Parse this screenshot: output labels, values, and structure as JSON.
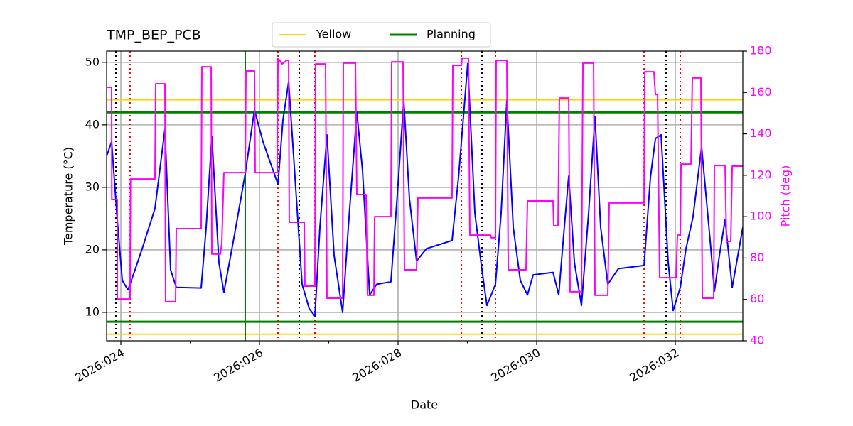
{
  "chart_data": {
    "type": "line",
    "title": "TMP_BEP_PCB",
    "xlabel": "Date",
    "ylabel": "Temperature (°C)",
    "y2label": "Pitch (deg)",
    "xlim": [
      23.795,
      32.974
    ],
    "xticks": [
      {
        "value": 24,
        "label": "2026:024"
      },
      {
        "value": 26,
        "label": "2026:026"
      },
      {
        "value": 28,
        "label": "2026:028"
      },
      {
        "value": 30,
        "label": "2026:030"
      },
      {
        "value": 32,
        "label": "2026:032"
      }
    ],
    "xminorticks": [
      25,
      27,
      29,
      31
    ],
    "ylim": [
      5.45,
      51.8
    ],
    "yticks": [
      10,
      20,
      30,
      40,
      50
    ],
    "y2lim": [
      40,
      180
    ],
    "y2ticks": [
      40,
      60,
      80,
      100,
      120,
      140,
      160,
      180
    ],
    "y2color": "#ff00ff",
    "grid": true,
    "legend": "upper center",
    "hlines": [
      {
        "name": "Yellow",
        "color": "#ffd700",
        "values": [
          44,
          6.5
        ]
      },
      {
        "name": "Planning",
        "color": "#008000",
        "values": [
          42,
          8.5
        ]
      }
    ],
    "vlines": [
      {
        "color": "#000000",
        "dashed": true,
        "values": [
          23.928,
          26.574,
          29.21,
          31.867
        ]
      },
      {
        "color": "#ff0000",
        "dashed": true,
        "values": [
          24.133,
          26.267,
          26.8,
          28.913,
          29.405,
          31.549,
          32.072
        ]
      },
      {
        "color": "#008000",
        "dashed": false,
        "values": [
          25.795
        ]
      }
    ],
    "series": [
      {
        "color": "#0000ff",
        "axis": "y",
        "x": [
          23.795,
          23.867,
          23.949,
          24.021,
          24.103,
          24.205,
          24.308,
          24.492,
          24.636,
          24.718,
          24.8,
          25.159,
          25.231,
          25.313,
          25.415,
          25.487,
          25.641,
          25.795,
          25.928,
          26.051,
          26.267,
          26.338,
          26.421,
          26.513,
          26.615,
          26.718,
          26.8,
          26.872,
          26.974,
          27.077,
          27.2,
          27.282,
          27.405,
          27.487,
          27.59,
          27.692,
          27.897,
          28,
          28.082,
          28.164,
          28.267,
          28.41,
          28.779,
          28.872,
          29.005,
          29.108,
          29.21,
          29.282,
          29.405,
          29.487,
          29.569,
          29.662,
          29.764,
          29.867,
          29.949,
          30.236,
          30.318,
          30.39,
          30.462,
          30.544,
          30.646,
          30.749,
          30.841,
          30.923,
          31.026,
          31.179,
          31.549,
          31.641,
          31.713,
          31.795,
          31.897,
          31.969,
          32.072,
          32.154,
          32.256,
          32.379,
          32.513,
          32.564,
          32.636,
          32.718,
          32.821,
          32.974
        ],
        "values": [
          35,
          37.3,
          24.8,
          15.1,
          13.6,
          16.8,
          20.2,
          26.6,
          39.3,
          16.8,
          14,
          13.9,
          23.6,
          38.2,
          18,
          13.2,
          22.5,
          32.2,
          42.4,
          37.3,
          30.5,
          40.7,
          46.9,
          31.6,
          14.5,
          10.6,
          9.4,
          23.6,
          38.4,
          19.1,
          10,
          23.6,
          42,
          32.7,
          12.8,
          14.5,
          14.9,
          30.5,
          43.9,
          28.2,
          18.2,
          20.2,
          21.5,
          31.6,
          49.8,
          25.9,
          16.8,
          11.1,
          14.5,
          25.9,
          43.9,
          23.6,
          15.1,
          12.8,
          16,
          16.4,
          12.8,
          22.5,
          31.8,
          18,
          11.1,
          25.9,
          41.3,
          23.6,
          14.5,
          17,
          17.5,
          31.6,
          37.8,
          38.4,
          18,
          10.3,
          14,
          20.2,
          25.3,
          36.5,
          20.2,
          13.4,
          19.1,
          24.8,
          14,
          23.6
        ]
      },
      {
        "color": "#ff00ff",
        "axis": "y2",
        "x": [
          23.795,
          23.867,
          23.87,
          23.949,
          23.95,
          24.133,
          24.14,
          24.492,
          24.503,
          24.636,
          24.646,
          24.79,
          24.8,
          25.159,
          25.169,
          25.303,
          25.313,
          25.436,
          25.456,
          25.487,
          25.795,
          25.805,
          25.928,
          25.938,
          26.256,
          26.267,
          26.328,
          26.39,
          26.421,
          26.43,
          26.646,
          26.656,
          26.8,
          26.81,
          26.954,
          26.974,
          27.2,
          27.21,
          27.385,
          27.405,
          27.538,
          27.559,
          27.651,
          27.662,
          27.897,
          27.908,
          28.072,
          28.092,
          28.267,
          28.287,
          28.779,
          28.79,
          28.913,
          28.923,
          29.015,
          29.036,
          29.333,
          29.344,
          29.405,
          29.415,
          29.569,
          29.59,
          29.846,
          29.867,
          30.236,
          30.246,
          30.308,
          30.328,
          30.462,
          30.482,
          30.646,
          30.667,
          30.821,
          30.841,
          31.026,
          31.046,
          31.549,
          31.559,
          31.692,
          31.713,
          31.744,
          31.774,
          32.01,
          32.031,
          32.072,
          32.082,
          32.226,
          32.246,
          32.369,
          32.39,
          32.554,
          32.564,
          32.718,
          32.738,
          32.8,
          32.821,
          32.974
        ],
        "values": [
          162.5,
          162.5,
          108.3,
          108.3,
          60.2,
          60.2,
          118.2,
          118.2,
          164.2,
          164.2,
          58.9,
          58.9,
          94.2,
          94.2,
          172.4,
          172.4,
          81.9,
          81.9,
          86.9,
          121.3,
          121.3,
          170.4,
          170.4,
          121.3,
          121.3,
          176.6,
          173.8,
          175.5,
          175.5,
          97.3,
          97.3,
          66.4,
          66.4,
          173.8,
          173.8,
          60.6,
          60.6,
          174.2,
          174.2,
          110.7,
          110.7,
          62,
          62,
          100,
          100,
          174.8,
          174.8,
          74.3,
          74.3,
          109,
          109,
          173.1,
          173.1,
          176.6,
          176.6,
          91.1,
          91.1,
          89.8,
          89.8,
          175.5,
          175.5,
          74.3,
          74.3,
          107.6,
          107.6,
          95.6,
          95.6,
          157.3,
          157.3,
          63.7,
          63.7,
          174.2,
          174.2,
          62,
          62,
          106.6,
          106.6,
          170,
          170,
          159,
          159,
          70.5,
          70.5,
          91.1,
          91.1,
          125.4,
          125.4,
          167,
          167,
          60.6,
          60.6,
          124.7,
          124.7,
          88,
          88,
          124.4,
          124.4
        ]
      }
    ]
  }
}
